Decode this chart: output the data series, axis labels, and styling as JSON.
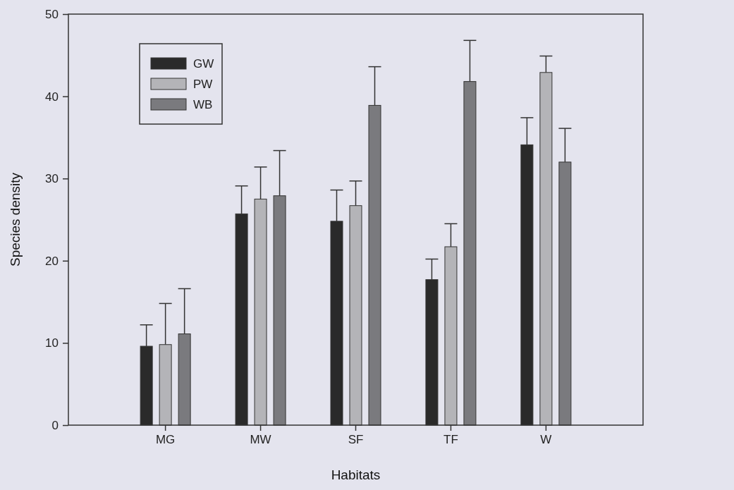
{
  "chart_data": {
    "type": "bar",
    "xlabel": "Habitats",
    "ylabel": "Species density",
    "categories": [
      "MG",
      "MW",
      "SF",
      "TF",
      "W"
    ],
    "series": [
      {
        "name": "GW",
        "color": "#2a2a2a",
        "values": [
          9.6,
          25.7,
          24.8,
          17.7,
          34.1
        ],
        "errors": [
          [
            9.6,
            12.2
          ],
          [
            25.7,
            29.1
          ],
          [
            24.8,
            28.6
          ],
          [
            17.7,
            20.2
          ],
          [
            34.1,
            37.4
          ]
        ]
      },
      {
        "name": "PW",
        "color": "#b4b4b8",
        "values": [
          9.8,
          27.5,
          26.7,
          21.7,
          42.9
        ],
        "errors": [
          [
            9.8,
            14.8
          ],
          [
            27.5,
            31.4
          ],
          [
            26.7,
            29.7
          ],
          [
            21.7,
            24.5
          ],
          [
            42.9,
            44.9
          ]
        ]
      },
      {
        "name": "WB",
        "color": "#7a7a7e",
        "values": [
          11.1,
          27.9,
          38.9,
          41.8,
          32.0
        ],
        "errors": [
          [
            11.1,
            16.6
          ],
          [
            27.9,
            33.4
          ],
          [
            38.9,
            43.6
          ],
          [
            41.8,
            46.8
          ],
          [
            32.0,
            36.1
          ]
        ]
      }
    ],
    "ylim": [
      0,
      50
    ],
    "yticks": [
      0,
      10,
      20,
      30,
      40,
      50
    ],
    "legend": "top left",
    "grid": false
  }
}
